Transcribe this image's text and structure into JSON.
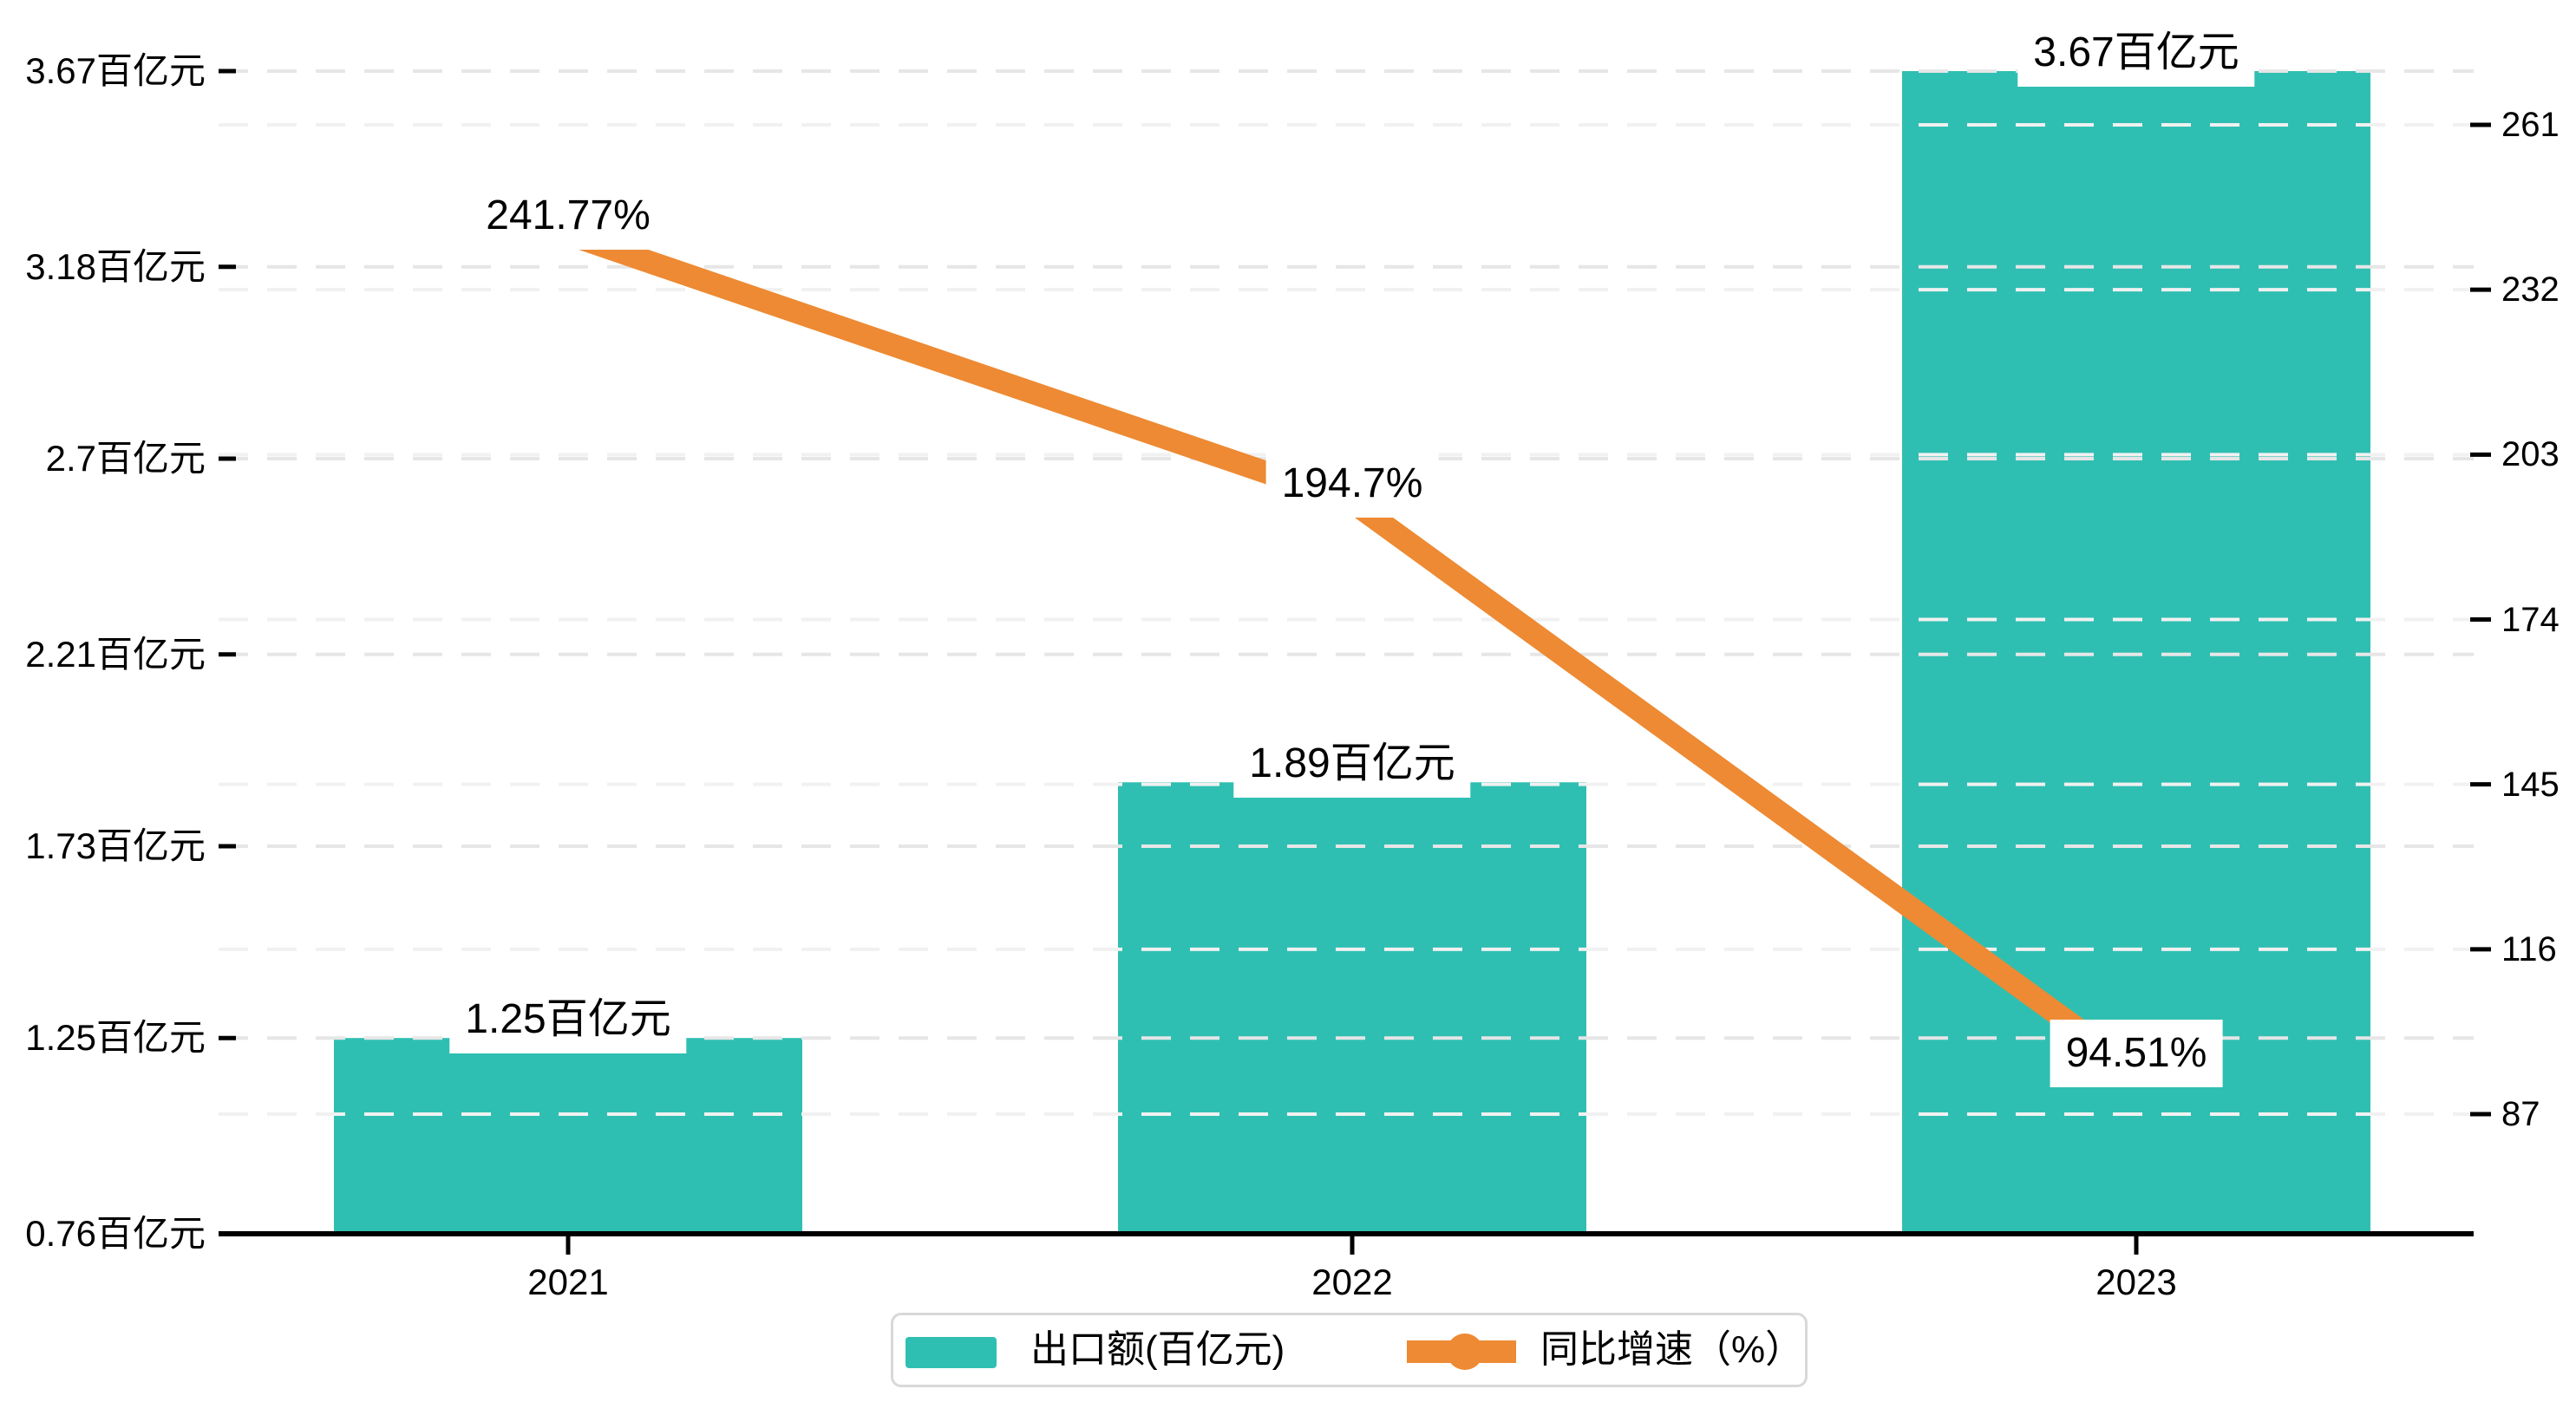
{
  "chart_data": {
    "type": "bar",
    "title": "",
    "categories": [
      "2021",
      "2022",
      "2023"
    ],
    "series": [
      {
        "name": "出口额(百亿元)",
        "type": "bar",
        "axis": "left",
        "color": "#2fbfb2",
        "values": [
          1.25,
          1.89,
          3.67
        ],
        "data_labels": [
          "1.25百亿元",
          "1.89百亿元",
          "3.67百亿元"
        ]
      },
      {
        "name": "同比增速（%）",
        "type": "line",
        "axis": "right",
        "color": "#ed8a33",
        "values": [
          241.77,
          194.7,
          94.51
        ],
        "data_labels": [
          "241.77%",
          "194.7%",
          "94.51%"
        ]
      }
    ],
    "left_axis": {
      "tick_values": [
        3.67,
        3.18,
        2.7,
        2.21,
        1.73,
        1.25,
        0.76
      ],
      "tick_labels": [
        "3.67百亿元",
        "3.18百亿元",
        "2.7百亿元",
        "2.21百亿元",
        "1.73百亿元",
        "1.25百亿元",
        "0.76百亿元"
      ],
      "min": 0.76,
      "max": 3.67
    },
    "right_axis": {
      "tick_values": [
        261,
        232,
        203,
        174,
        145,
        116,
        87
      ],
      "tick_labels": [
        "261",
        "232",
        "203",
        "174",
        "145",
        "116",
        "87"
      ],
      "min": 87,
      "max": 261
    },
    "grid": "dashed horizontal gridlines for both axes",
    "legend_position": "bottom-center",
    "legend": {
      "items": [
        {
          "label": "出口额(百亿元)",
          "type": "bar",
          "color": "#2fbfb2"
        },
        {
          "label": "同比增速（%）",
          "type": "line",
          "color": "#ed8a33"
        }
      ]
    },
    "colors": {
      "bar": "#2fbfb2",
      "line": "#ed8a33",
      "axis_line": "#000000",
      "grid_left": "#e6e6e6",
      "grid_right": "#f1f1f1",
      "text": "#000000",
      "legend_border": "#d8d8d8",
      "background": "#ffffff"
    }
  }
}
